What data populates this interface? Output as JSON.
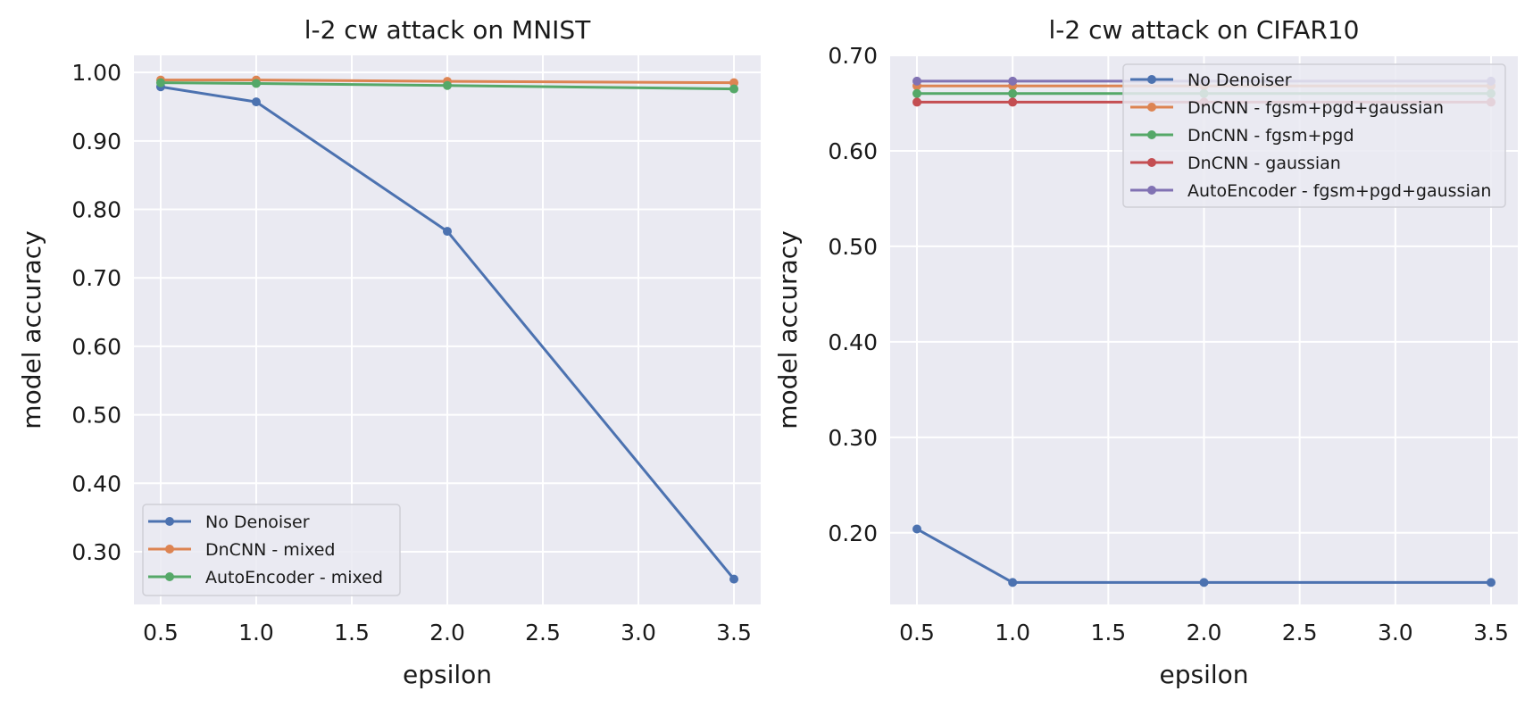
{
  "chart_data": [
    {
      "type": "line",
      "title": "l-2 cw attack on MNIST",
      "xlabel": "epsilon",
      "ylabel": "model accuracy",
      "x": [
        0.5,
        1.0,
        2.0,
        3.5
      ],
      "xlim": [
        0.36,
        3.64
      ],
      "ylim": [
        0.223,
        1.025
      ],
      "xticks": [
        "0.5",
        "1.0",
        "1.5",
        "2.0",
        "2.5",
        "3.0",
        "3.5"
      ],
      "yticks": [
        "0.30",
        "0.40",
        "0.50",
        "0.60",
        "0.70",
        "0.80",
        "0.90",
        "1.00"
      ],
      "grid": true,
      "legend_position": "lower-left",
      "series": [
        {
          "name": "No Denoiser",
          "color": "#4c72b0",
          "values": [
            0.979,
            0.957,
            0.768,
            0.26
          ]
        },
        {
          "name": "DnCNN - mixed",
          "color": "#dd8452",
          "values": [
            0.989,
            0.989,
            0.987,
            0.985
          ]
        },
        {
          "name": "AutoEncoder - mixed",
          "color": "#55a868",
          "values": [
            0.985,
            0.984,
            0.981,
            0.976
          ]
        }
      ]
    },
    {
      "type": "line",
      "title": "l-2 cw attack on CIFAR10",
      "xlabel": "epsilon",
      "ylabel": "model accuracy",
      "x": [
        0.5,
        1.0,
        2.0,
        3.5
      ],
      "xlim": [
        0.36,
        3.64
      ],
      "ylim": [
        0.125,
        0.7
      ],
      "xticks": [
        "0.5",
        "1.0",
        "1.5",
        "2.0",
        "2.5",
        "3.0",
        "3.5"
      ],
      "yticks": [
        "0.20",
        "0.30",
        "0.40",
        "0.50",
        "0.60",
        "0.70"
      ],
      "grid": true,
      "legend_position": "upper-right",
      "series": [
        {
          "name": "No Denoiser",
          "color": "#4c72b0",
          "values": [
            0.204,
            0.148,
            0.148,
            0.148
          ]
        },
        {
          "name": "DnCNN - fgsm+pgd+gaussian",
          "color": "#dd8452",
          "values": [
            0.668,
            0.668,
            0.668,
            0.668
          ]
        },
        {
          "name": "DnCNN - fgsm+pgd",
          "color": "#55a868",
          "values": [
            0.66,
            0.66,
            0.66,
            0.66
          ]
        },
        {
          "name": "DnCNN - gaussian",
          "color": "#c44e52",
          "values": [
            0.651,
            0.651,
            0.651,
            0.651
          ]
        },
        {
          "name": "AutoEncoder - fgsm+pgd+gaussian",
          "color": "#8172b3",
          "values": [
            0.673,
            0.673,
            0.673,
            0.673
          ]
        }
      ]
    }
  ],
  "colors": {
    "plot_background": "#eaeaf2",
    "grid": "#ffffff"
  }
}
